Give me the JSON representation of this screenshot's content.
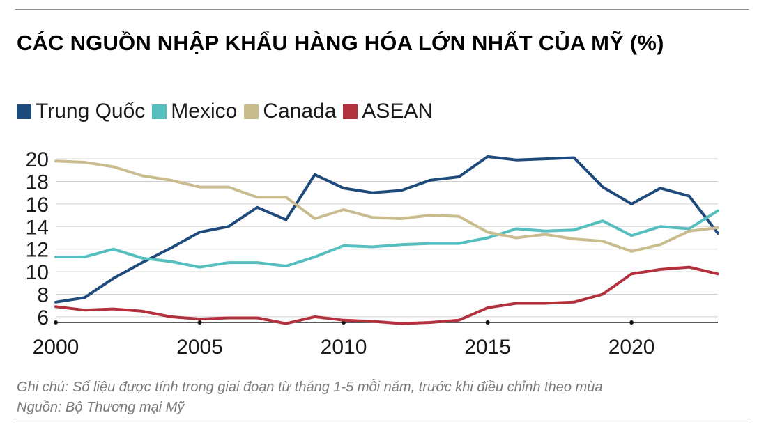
{
  "title": "CÁC NGUỒN NHẬP KHẨU HÀNG HÓA LỚN NHẤT CỦA MỸ (%)",
  "note": "Ghi chú: Số liệu được tính trong giai đoạn từ tháng 1-5 mỗi năm, trước khi điều chỉnh theo mùa",
  "source": "Nguồn: Bộ Thương mại Mỹ",
  "chart_data": {
    "type": "line",
    "title": "CÁC NGUỒN NHẬP KHẨU HÀNG HÓA LỚN NHẤT CỦA MỸ (%)",
    "xlabel": "",
    "ylabel": "",
    "x": [
      2000,
      2001,
      2002,
      2003,
      2004,
      2005,
      2006,
      2007,
      2008,
      2009,
      2010,
      2011,
      2012,
      2013,
      2014,
      2015,
      2016,
      2017,
      2018,
      2019,
      2020,
      2021,
      2022,
      2023
    ],
    "xlim": [
      2000,
      2023
    ],
    "ylim": [
      5.5,
      20.5
    ],
    "x_ticks": [
      "2000",
      "2005",
      "2010",
      "2015",
      "2020"
    ],
    "y_ticks": [
      "6",
      "8",
      "10",
      "12",
      "14",
      "16",
      "18",
      "20"
    ],
    "grid": "horizontal",
    "legend_position": "top-left",
    "series": [
      {
        "name": "Trung Quốc",
        "color": "#1e4a7c",
        "values": [
          7.3,
          7.7,
          9.4,
          10.8,
          12.1,
          13.5,
          14.0,
          15.7,
          14.6,
          18.6,
          17.4,
          17.0,
          17.2,
          18.1,
          18.4,
          20.2,
          19.9,
          20.0,
          20.1,
          17.5,
          16.0,
          17.4,
          16.7,
          13.4
        ]
      },
      {
        "name": "Mexico",
        "color": "#55bfc0",
        "values": [
          11.3,
          11.3,
          12.0,
          11.2,
          10.9,
          10.4,
          10.8,
          10.8,
          10.5,
          11.3,
          12.3,
          12.2,
          12.4,
          12.5,
          12.5,
          13.0,
          13.8,
          13.6,
          13.7,
          14.5,
          13.2,
          14.0,
          13.8,
          15.4
        ]
      },
      {
        "name": "Canada",
        "color": "#c9bc8e",
        "values": [
          19.8,
          19.7,
          19.3,
          18.5,
          18.1,
          17.5,
          17.5,
          16.6,
          16.6,
          14.7,
          15.5,
          14.8,
          14.7,
          15.0,
          14.9,
          13.5,
          13.0,
          13.3,
          12.9,
          12.7,
          11.8,
          12.4,
          13.6,
          13.9
        ]
      },
      {
        "name": "ASEAN",
        "color": "#b3313d",
        "values": [
          6.9,
          6.6,
          6.7,
          6.5,
          6.0,
          5.8,
          5.9,
          5.9,
          5.4,
          6.0,
          5.7,
          5.6,
          5.4,
          5.5,
          5.7,
          6.8,
          7.2,
          7.2,
          7.3,
          8.0,
          9.8,
          10.2,
          10.4,
          9.8
        ]
      }
    ]
  }
}
